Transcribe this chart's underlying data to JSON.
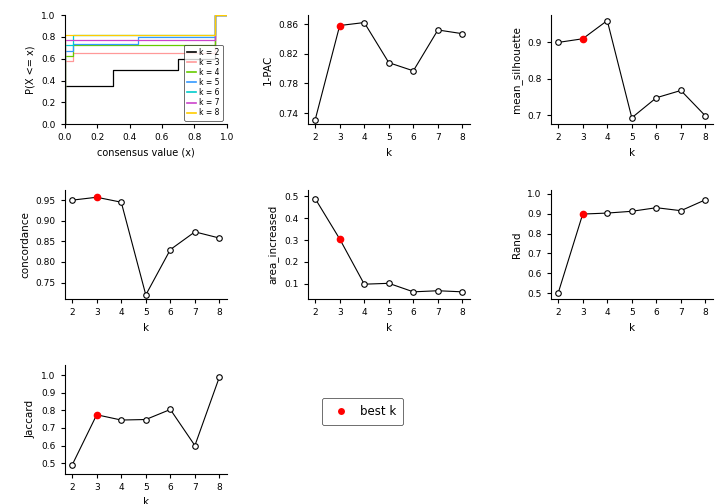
{
  "k_values": [
    2,
    3,
    4,
    5,
    6,
    7,
    8
  ],
  "one_pac": [
    0.731,
    0.858,
    0.862,
    0.808,
    0.797,
    0.852,
    0.847
  ],
  "one_pac_best_k": 3,
  "mean_silhouette": [
    0.9,
    0.91,
    0.96,
    0.693,
    0.748,
    0.768,
    0.698
  ],
  "mean_silhouette_best_k": 3,
  "concordance": [
    0.95,
    0.957,
    0.945,
    0.72,
    0.83,
    0.873,
    0.858
  ],
  "concordance_best_k": 3,
  "area_increased": [
    0.49,
    0.305,
    0.098,
    0.102,
    0.063,
    0.068,
    0.063
  ],
  "area_increased_best_k": 3,
  "rand": [
    0.5,
    0.898,
    0.903,
    0.912,
    0.93,
    0.915,
    0.97
  ],
  "rand_best_k": 3,
  "jaccard": [
    0.49,
    0.775,
    0.745,
    0.748,
    0.805,
    0.6,
    0.99
  ],
  "jaccard_best_k": 3,
  "ecdf_colors": [
    "#000000",
    "#FF9999",
    "#66CC00",
    "#3399FF",
    "#00CCCC",
    "#CC44CC",
    "#FFCC00"
  ],
  "ecdf_labels": [
    "k = 2",
    "k = 3",
    "k = 4",
    "k = 5",
    "k = 6",
    "k = 7",
    "k = 8"
  ],
  "bg_color": "#FFFFFF"
}
